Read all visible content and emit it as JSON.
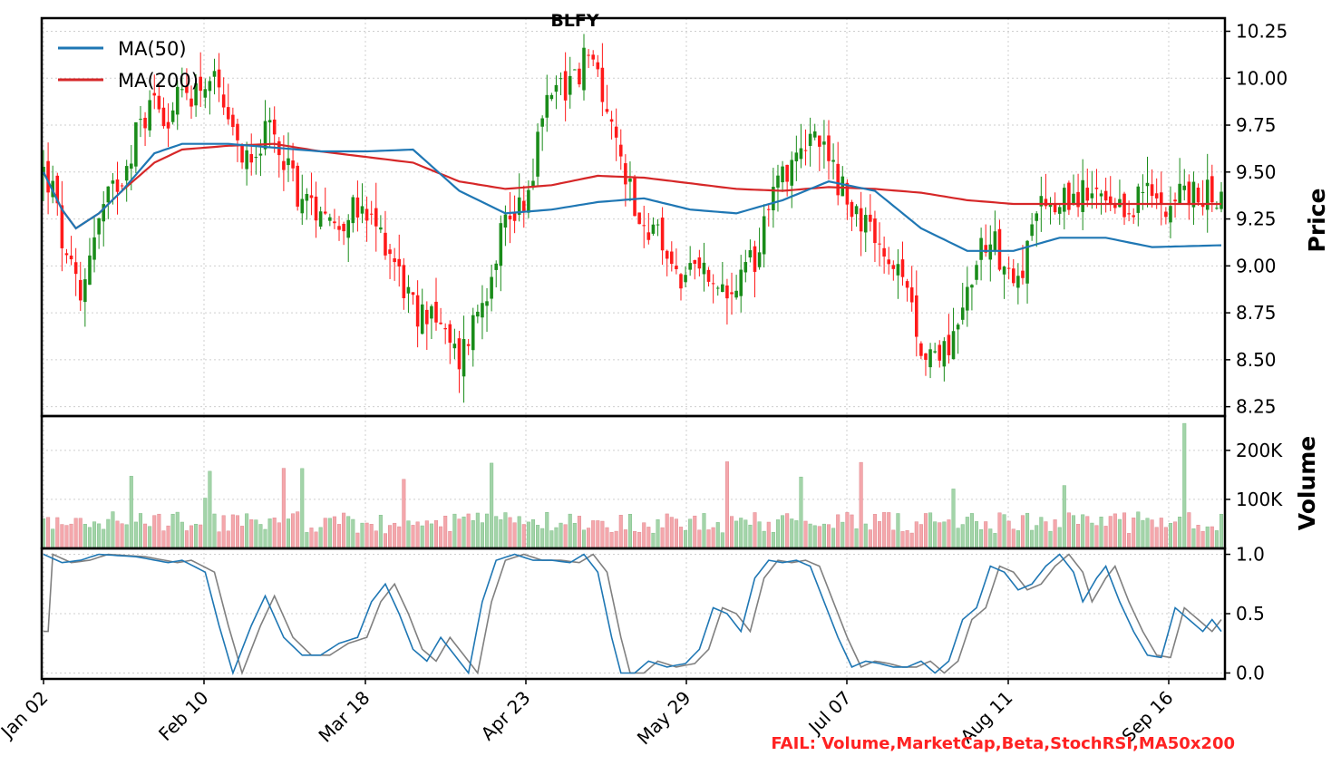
{
  "chart_data": {
    "type": "candlestick",
    "ticker": "BLFY",
    "title": "BLFY",
    "x_tick_labels": [
      "Jan 02",
      "Feb 10",
      "Mar 18",
      "Apr 23",
      "May 29",
      "Jul 07",
      "Aug 11",
      "Sep 16"
    ],
    "price_axis": {
      "label": "Price",
      "ylim": [
        8.2,
        10.32
      ],
      "ticks": [
        "8.25",
        "8.50",
        "8.75",
        "9.00",
        "9.25",
        "9.50",
        "9.75",
        "10.00",
        "10.25"
      ]
    },
    "volume_axis": {
      "label": "Volume",
      "ylim": [
        0,
        270000
      ],
      "ticks": [
        "100K",
        "200K"
      ]
    },
    "stoch_axis": {
      "ylim": [
        -0.05,
        1.05
      ],
      "ticks": [
        "0.0",
        "0.5",
        "1.0"
      ]
    },
    "legend": [
      {
        "name": "MA(50)",
        "color": "#1f77b4"
      },
      {
        "name": "MA(200)",
        "color": "#d62728"
      }
    ],
    "colors": {
      "up": "#1a8c1a",
      "down": "#ff1a1a",
      "volume_up": "#a3d4a9",
      "volume_down": "#f4a7ac",
      "stoch_k": "#1f77b4",
      "stoch_d": "#808080"
    },
    "close_anchors": [
      [
        0,
        9.5
      ],
      [
        2,
        9.4
      ],
      [
        5,
        9.0
      ],
      [
        7,
        8.9
      ],
      [
        8,
        8.8
      ],
      [
        10,
        9.1
      ],
      [
        13,
        9.3
      ],
      [
        17,
        9.5
      ],
      [
        20,
        9.7
      ],
      [
        24,
        9.9
      ],
      [
        27,
        9.8
      ],
      [
        30,
        9.9
      ],
      [
        33,
        9.95
      ],
      [
        36,
        10.0
      ],
      [
        38,
        9.9
      ],
      [
        40,
        9.7
      ],
      [
        43,
        9.6
      ],
      [
        46,
        9.65
      ],
      [
        49,
        9.7
      ],
      [
        52,
        9.6
      ],
      [
        55,
        9.4
      ],
      [
        58,
        9.3
      ],
      [
        61,
        9.35
      ],
      [
        63,
        9.2
      ],
      [
        66,
        9.3
      ],
      [
        69,
        9.25
      ],
      [
        72,
        9.2
      ],
      [
        75,
        9.1
      ],
      [
        78,
        8.9
      ],
      [
        81,
        8.7
      ],
      [
        84,
        8.8
      ],
      [
        87,
        8.6
      ],
      [
        90,
        8.5
      ],
      [
        93,
        8.7
      ],
      [
        96,
        8.9
      ],
      [
        99,
        9.2
      ],
      [
        102,
        9.3
      ],
      [
        105,
        9.4
      ],
      [
        108,
        9.8
      ],
      [
        111,
        10.0
      ],
      [
        114,
        9.95
      ],
      [
        117,
        10.1
      ],
      [
        120,
        10.05
      ],
      [
        123,
        9.7
      ],
      [
        126,
        9.5
      ],
      [
        128,
        9.35
      ],
      [
        130,
        9.2
      ],
      [
        133,
        9.15
      ],
      [
        136,
        9.0
      ],
      [
        139,
        8.9
      ],
      [
        142,
        9.0
      ],
      [
        145,
        8.9
      ],
      [
        148,
        8.8
      ],
      [
        151,
        8.9
      ],
      [
        154,
        9.05
      ],
      [
        157,
        9.35
      ],
      [
        160,
        9.5
      ],
      [
        163,
        9.6
      ],
      [
        166,
        9.7
      ],
      [
        169,
        9.6
      ],
      [
        172,
        9.45
      ],
      [
        175,
        9.3
      ],
      [
        178,
        9.2
      ],
      [
        181,
        9.1
      ],
      [
        184,
        9.0
      ],
      [
        187,
        8.8
      ],
      [
        190,
        8.6
      ],
      [
        193,
        8.5
      ],
      [
        196,
        8.6
      ],
      [
        199,
        8.75
      ],
      [
        202,
        9.05
      ],
      [
        205,
        9.2
      ],
      [
        208,
        9.0
      ],
      [
        211,
        8.95
      ],
      [
        214,
        9.15
      ],
      [
        217,
        9.35
      ],
      [
        220,
        9.3
      ],
      [
        223,
        9.4
      ],
      [
        226,
        9.35
      ],
      [
        229,
        9.35
      ],
      [
        232,
        9.25
      ],
      [
        235,
        9.3
      ],
      [
        238,
        9.4
      ],
      [
        241,
        9.35
      ],
      [
        244,
        9.35
      ],
      [
        247,
        9.4
      ],
      [
        250,
        9.35
      ],
      [
        253,
        9.4
      ],
      [
        255,
        9.35
      ]
    ],
    "ma50_anchors": [
      [
        0,
        9.5
      ],
      [
        4,
        9.3
      ],
      [
        7,
        9.2
      ],
      [
        12,
        9.28
      ],
      [
        17,
        9.4
      ],
      [
        24,
        9.6
      ],
      [
        30,
        9.65
      ],
      [
        40,
        9.65
      ],
      [
        50,
        9.63
      ],
      [
        60,
        9.61
      ],
      [
        70,
        9.61
      ],
      [
        80,
        9.62
      ],
      [
        90,
        9.4
      ],
      [
        100,
        9.28
      ],
      [
        110,
        9.3
      ],
      [
        120,
        9.34
      ],
      [
        130,
        9.36
      ],
      [
        140,
        9.3
      ],
      [
        150,
        9.28
      ],
      [
        160,
        9.35
      ],
      [
        170,
        9.45
      ],
      [
        180,
        9.4
      ],
      [
        190,
        9.2
      ],
      [
        200,
        9.08
      ],
      [
        210,
        9.08
      ],
      [
        220,
        9.15
      ],
      [
        230,
        9.15
      ],
      [
        240,
        9.1
      ],
      [
        255,
        9.11
      ]
    ],
    "ma200_anchors": [
      [
        0,
        9.5
      ],
      [
        4,
        9.3
      ],
      [
        7,
        9.2
      ],
      [
        12,
        9.28
      ],
      [
        17,
        9.4
      ],
      [
        24,
        9.55
      ],
      [
        30,
        9.62
      ],
      [
        40,
        9.64
      ],
      [
        50,
        9.65
      ],
      [
        60,
        9.61
      ],
      [
        70,
        9.58
      ],
      [
        80,
        9.55
      ],
      [
        90,
        9.45
      ],
      [
        100,
        9.41
      ],
      [
        110,
        9.43
      ],
      [
        120,
        9.48
      ],
      [
        130,
        9.47
      ],
      [
        140,
        9.44
      ],
      [
        150,
        9.41
      ],
      [
        160,
        9.4
      ],
      [
        170,
        9.42
      ],
      [
        180,
        9.41
      ],
      [
        190,
        9.39
      ],
      [
        200,
        9.35
      ],
      [
        210,
        9.33
      ],
      [
        220,
        9.33
      ],
      [
        230,
        9.33
      ],
      [
        240,
        9.33
      ],
      [
        255,
        9.33
      ]
    ],
    "stoch_k_anchors": [
      [
        0,
        1.0
      ],
      [
        4,
        0.93
      ],
      [
        8,
        0.95
      ],
      [
        12,
        1.0
      ],
      [
        20,
        0.98
      ],
      [
        27,
        0.93
      ],
      [
        30,
        0.95
      ],
      [
        35,
        0.85
      ],
      [
        38,
        0.4
      ],
      [
        41,
        0.0
      ],
      [
        45,
        0.4
      ],
      [
        48,
        0.65
      ],
      [
        52,
        0.3
      ],
      [
        56,
        0.15
      ],
      [
        60,
        0.15
      ],
      [
        64,
        0.25
      ],
      [
        68,
        0.3
      ],
      [
        71,
        0.6
      ],
      [
        74,
        0.75
      ],
      [
        77,
        0.5
      ],
      [
        80,
        0.2
      ],
      [
        83,
        0.1
      ],
      [
        86,
        0.3
      ],
      [
        89,
        0.15
      ],
      [
        92,
        0.0
      ],
      [
        95,
        0.6
      ],
      [
        98,
        0.95
      ],
      [
        102,
        1.0
      ],
      [
        106,
        0.95
      ],
      [
        110,
        0.95
      ],
      [
        114,
        0.93
      ],
      [
        117,
        1.0
      ],
      [
        120,
        0.85
      ],
      [
        123,
        0.3
      ],
      [
        125,
        0.0
      ],
      [
        128,
        0.0
      ],
      [
        131,
        0.1
      ],
      [
        135,
        0.05
      ],
      [
        139,
        0.08
      ],
      [
        142,
        0.2
      ],
      [
        145,
        0.55
      ],
      [
        148,
        0.5
      ],
      [
        151,
        0.35
      ],
      [
        154,
        0.8
      ],
      [
        157,
        0.95
      ],
      [
        160,
        0.93
      ],
      [
        163,
        0.95
      ],
      [
        166,
        0.9
      ],
      [
        169,
        0.6
      ],
      [
        172,
        0.3
      ],
      [
        175,
        0.05
      ],
      [
        178,
        0.1
      ],
      [
        181,
        0.08
      ],
      [
        184,
        0.05
      ],
      [
        187,
        0.05
      ],
      [
        190,
        0.1
      ],
      [
        193,
        0.0
      ],
      [
        196,
        0.1
      ],
      [
        199,
        0.45
      ],
      [
        202,
        0.55
      ],
      [
        205,
        0.9
      ],
      [
        208,
        0.85
      ],
      [
        211,
        0.7
      ],
      [
        214,
        0.75
      ],
      [
        217,
        0.9
      ],
      [
        220,
        1.0
      ],
      [
        223,
        0.85
      ],
      [
        225,
        0.6
      ],
      [
        228,
        0.8
      ],
      [
        230,
        0.9
      ],
      [
        233,
        0.6
      ],
      [
        236,
        0.35
      ],
      [
        239,
        0.15
      ],
      [
        242,
        0.13
      ],
      [
        245,
        0.55
      ],
      [
        248,
        0.45
      ],
      [
        251,
        0.35
      ],
      [
        253,
        0.45
      ],
      [
        255,
        0.35
      ]
    ]
  },
  "annotations": {
    "fail_text": "FAIL: Volume,MarketCap,Beta,StochRSI,MA50x200"
  }
}
